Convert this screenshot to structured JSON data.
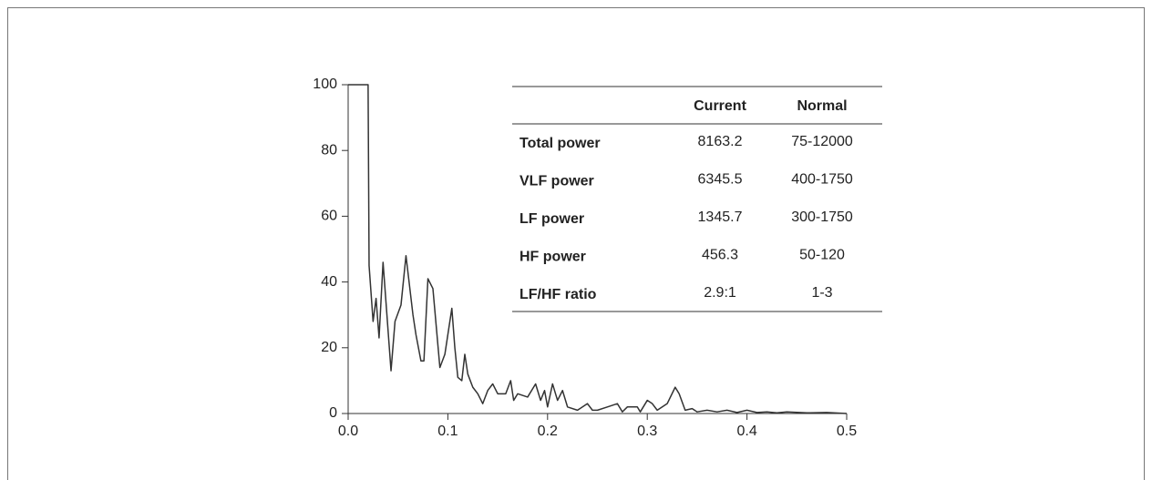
{
  "chart_data": {
    "type": "line",
    "x": [
      0,
      0.02,
      0.021,
      0.025,
      0.028,
      0.031,
      0.035,
      0.043,
      0.047,
      0.053,
      0.058,
      0.065,
      0.068,
      0.073,
      0.076,
      0.08,
      0.085,
      0.092,
      0.097,
      0.104,
      0.107,
      0.11,
      0.114,
      0.117,
      0.12,
      0.125,
      0.13,
      0.135,
      0.14,
      0.145,
      0.15,
      0.158,
      0.163,
      0.166,
      0.17,
      0.18,
      0.188,
      0.193,
      0.197,
      0.2,
      0.205,
      0.21,
      0.215,
      0.22,
      0.23,
      0.24,
      0.245,
      0.25,
      0.26,
      0.27,
      0.275,
      0.28,
      0.29,
      0.293,
      0.3,
      0.305,
      0.31,
      0.32,
      0.328,
      0.332,
      0.338,
      0.345,
      0.35,
      0.36,
      0.37,
      0.38,
      0.39,
      0.4,
      0.41,
      0.42,
      0.43,
      0.44,
      0.46,
      0.48,
      0.5
    ],
    "series": [
      {
        "color": "#333333",
        "values": [
          100,
          100,
          45,
          28,
          35,
          23,
          46,
          13,
          28,
          33,
          48,
          30,
          24,
          16,
          16,
          41,
          38,
          14,
          18,
          32,
          20,
          11,
          10,
          18,
          12,
          8,
          6,
          3,
          7,
          9,
          6,
          6,
          10,
          4,
          6,
          5,
          9,
          4,
          7,
          2,
          9,
          4,
          7,
          2,
          1,
          3,
          1,
          1,
          2,
          3,
          0.5,
          2,
          2,
          0.5,
          4,
          3,
          1,
          3,
          8,
          6,
          1,
          1.5,
          0.5,
          1,
          0.5,
          1,
          0.3,
          1,
          0.3,
          0.5,
          0.2,
          0.5,
          0.2,
          0.3,
          0
        ]
      }
    ],
    "xlim": [
      0,
      0.5
    ],
    "xticks": [
      {
        "value": 0,
        "label": "0.0"
      },
      0.1,
      0.2,
      0.3,
      0.4,
      0.5
    ],
    "ylim": [
      0,
      100
    ],
    "yticks": [
      0,
      20,
      40,
      60,
      80,
      100
    ],
    "grid": false
  },
  "table": {
    "headers": [
      "Current",
      "Normal"
    ],
    "rows": [
      [
        "Total power",
        "8163.2",
        "75-12000"
      ],
      [
        "VLF power",
        "6345.5",
        "400-1750"
      ],
      [
        "LF power",
        "1345.7",
        "300-1750"
      ],
      [
        "HF power",
        "456.3",
        "50-120"
      ],
      [
        "LF/HF ratio",
        "2.9:1",
        "1-3"
      ]
    ]
  }
}
